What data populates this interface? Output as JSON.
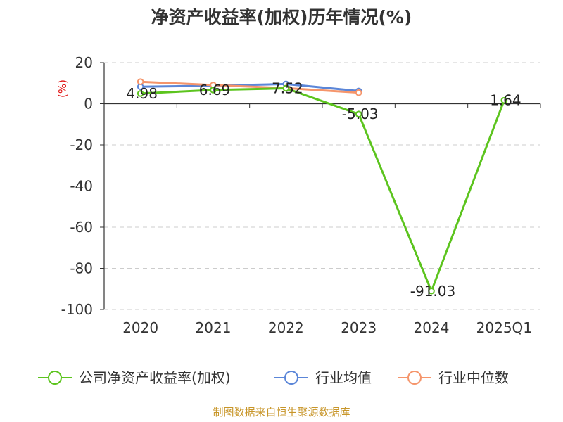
{
  "chart_data": {
    "type": "line",
    "title": "净资产收益率(加权)历年情况(%)",
    "ylabel": "(%)",
    "xlabel": "",
    "categories": [
      "2020",
      "2021",
      "2022",
      "2023",
      "2024",
      "2025Q1"
    ],
    "ylim": [
      -100,
      20
    ],
    "yticks": [
      20,
      0,
      -20,
      -40,
      -60,
      -80,
      -100
    ],
    "grid": true,
    "legend_position": "bottom",
    "series": [
      {
        "name": "公司净资产收益率(加权)",
        "color": "#5cc41e",
        "values": [
          4.98,
          6.69,
          7.52,
          -5.03,
          -91.03,
          1.64
        ],
        "labels": [
          "4.98",
          "6.69",
          "7.52",
          "-5.03",
          "-91.03",
          "1.64"
        ]
      },
      {
        "name": "行业均值",
        "color": "#5b86d8",
        "values": [
          8.3,
          8.8,
          9.6,
          6.2,
          null,
          null
        ]
      },
      {
        "name": "行业中位数",
        "color": "#f5956b",
        "values": [
          10.7,
          9.1,
          7.6,
          5.4,
          null,
          null
        ]
      }
    ],
    "source": "制图数据来自恒生聚源数据库"
  }
}
